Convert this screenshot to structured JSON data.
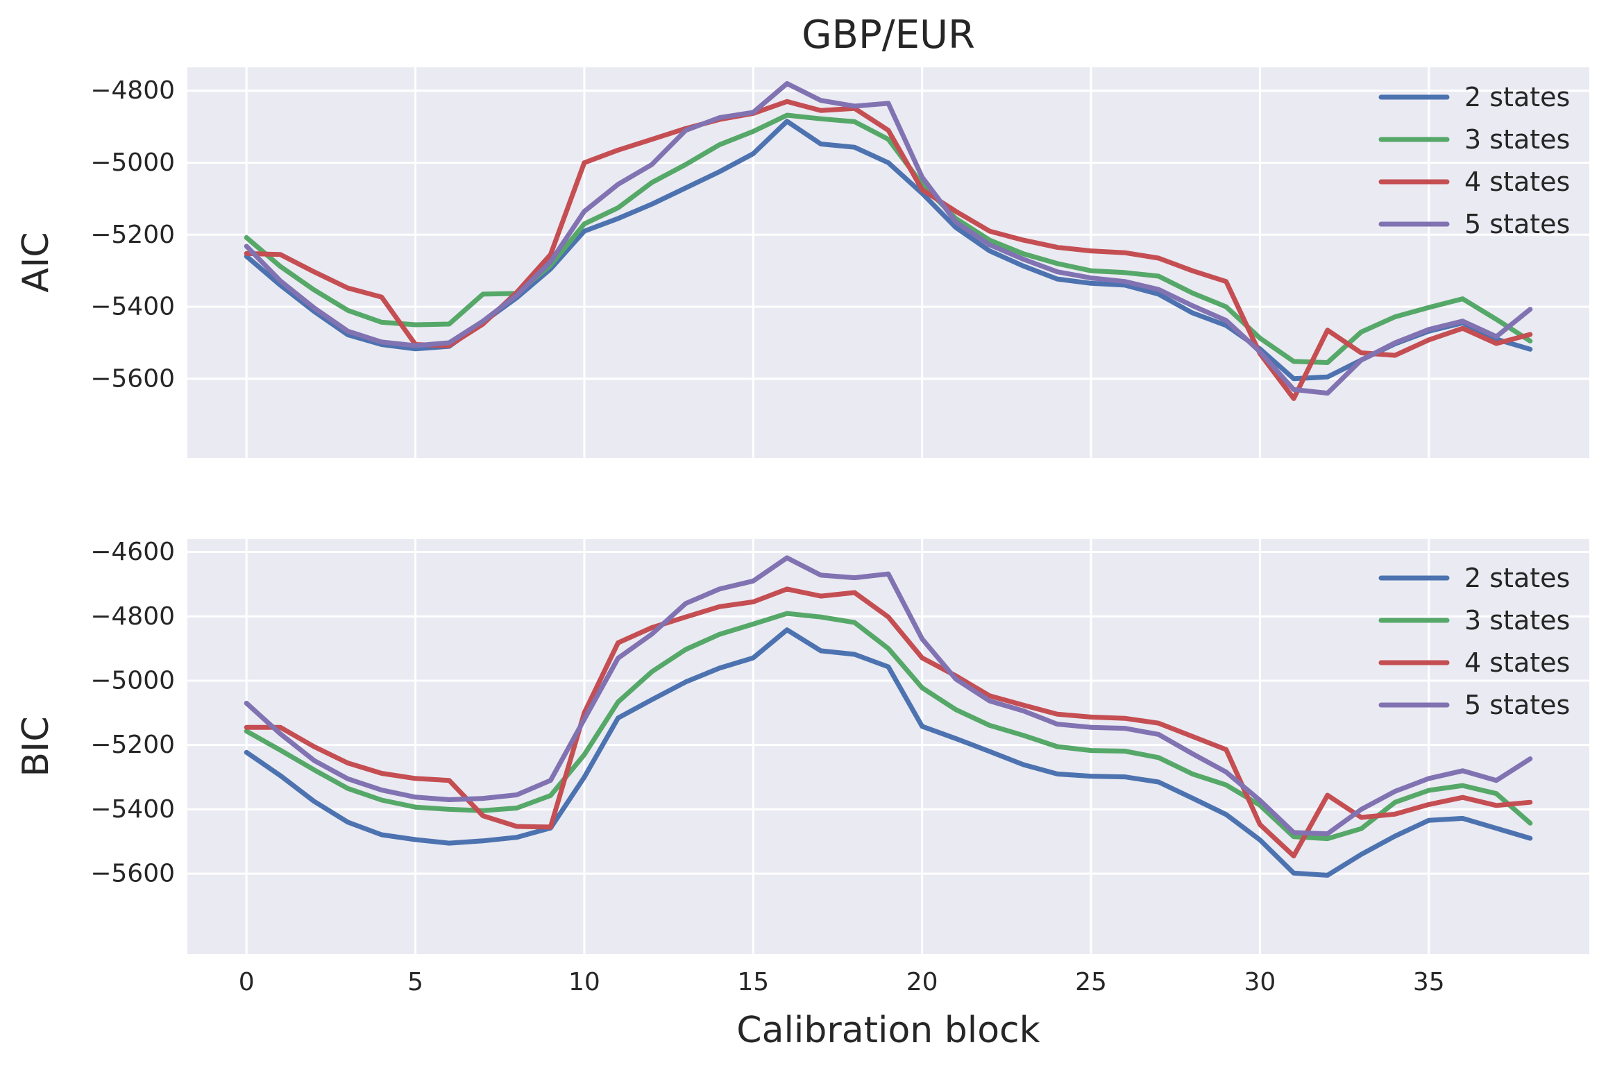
{
  "title": "GBP/EUR",
  "xlabel": "Calibration block",
  "style": {
    "axes_bg": "#EAEAF2",
    "grid_color": "#FFFFFF",
    "text_color": "#262626",
    "line_width": 7
  },
  "legend": {
    "labels": [
      "2 states",
      "3 states",
      "4 states",
      "5 states"
    ],
    "position": "upper right"
  },
  "chart_data": [
    {
      "type": "line",
      "panel": "top",
      "ylabel": "AIC",
      "grid": true,
      "xlim": [
        -1.75,
        39.75
      ],
      "ylim": [
        -5820,
        -4735
      ],
      "xticks": [
        0,
        5,
        10,
        15,
        20,
        25,
        30,
        35
      ],
      "xtick_labels": [
        "0",
        "5",
        "10",
        "15",
        "20",
        "25",
        "30",
        "35"
      ],
      "show_xtick_labels": false,
      "yticks": [
        -4800,
        -5000,
        -5200,
        -5400,
        -5600
      ],
      "ytick_labels": [
        "−4800",
        "−5000",
        "−5200",
        "−5400",
        "−5600"
      ],
      "x": [
        0,
        1,
        2,
        3,
        4,
        5,
        6,
        7,
        8,
        9,
        10,
        11,
        12,
        13,
        14,
        15,
        16,
        17,
        18,
        19,
        20,
        21,
        22,
        23,
        24,
        25,
        26,
        27,
        28,
        29,
        30,
        31,
        32,
        33,
        34,
        35,
        36,
        37,
        38
      ],
      "series": [
        {
          "name": "2 states",
          "color": "#4C72B0",
          "values": [
            -5260,
            -5340,
            -5413,
            -5478,
            -5505,
            -5517,
            -5510,
            -5443,
            -5375,
            -5295,
            -5190,
            -5155,
            -5115,
            -5070,
            -5025,
            -4975,
            -4885,
            -4948,
            -4957,
            -5000,
            -5085,
            -5180,
            -5245,
            -5287,
            -5323,
            -5335,
            -5340,
            -5365,
            -5417,
            -5452,
            -5517,
            -5600,
            -5595,
            -5548,
            -5503,
            -5468,
            -5445,
            -5490,
            -5518
          ]
        },
        {
          "name": "3 states",
          "color": "#55A868",
          "values": [
            -5208,
            -5288,
            -5353,
            -5410,
            -5443,
            -5450,
            -5448,
            -5365,
            -5363,
            -5285,
            -5170,
            -5125,
            -5055,
            -5005,
            -4950,
            -4913,
            -4868,
            -4878,
            -4886,
            -4935,
            -5060,
            -5155,
            -5215,
            -5253,
            -5280,
            -5300,
            -5305,
            -5315,
            -5362,
            -5400,
            -5487,
            -5552,
            -5555,
            -5470,
            -5428,
            -5402,
            -5378,
            -5435,
            -5495
          ]
        },
        {
          "name": "4 states",
          "color": "#C44E52",
          "values": [
            -5252,
            -5255,
            -5303,
            -5348,
            -5373,
            -5505,
            -5508,
            -5448,
            -5360,
            -5255,
            -5000,
            -4965,
            -4935,
            -4905,
            -4880,
            -4863,
            -4830,
            -4855,
            -4849,
            -4910,
            -5075,
            -5135,
            -5190,
            -5215,
            -5235,
            -5245,
            -5250,
            -5265,
            -5300,
            -5330,
            -5530,
            -5655,
            -5465,
            -5528,
            -5535,
            -5492,
            -5460,
            -5502,
            -5477
          ]
        },
        {
          "name": "5 states",
          "color": "#8172B2",
          "values": [
            -5232,
            -5328,
            -5403,
            -5468,
            -5498,
            -5508,
            -5500,
            -5440,
            -5368,
            -5275,
            -5135,
            -5060,
            -5005,
            -4910,
            -4875,
            -4860,
            -4780,
            -4827,
            -4843,
            -4835,
            -5040,
            -5165,
            -5228,
            -5268,
            -5303,
            -5320,
            -5330,
            -5352,
            -5397,
            -5438,
            -5525,
            -5630,
            -5640,
            -5548,
            -5500,
            -5463,
            -5440,
            -5483,
            -5407
          ]
        }
      ]
    },
    {
      "type": "line",
      "panel": "bottom",
      "ylabel": "BIC",
      "grid": true,
      "xlim": [
        -1.75,
        39.75
      ],
      "ylim": [
        -5850,
        -4560
      ],
      "xticks": [
        0,
        5,
        10,
        15,
        20,
        25,
        30,
        35
      ],
      "xtick_labels": [
        "0",
        "5",
        "10",
        "15",
        "20",
        "25",
        "30",
        "35"
      ],
      "show_xtick_labels": true,
      "yticks": [
        -4600,
        -4800,
        -5000,
        -5200,
        -5400,
        -5600
      ],
      "ytick_labels": [
        "−4600",
        "−4800",
        "−5000",
        "−5200",
        "−5400",
        "−5600"
      ],
      "x": [
        0,
        1,
        2,
        3,
        4,
        5,
        6,
        7,
        8,
        9,
        10,
        11,
        12,
        13,
        14,
        15,
        16,
        17,
        18,
        19,
        20,
        21,
        22,
        23,
        24,
        25,
        26,
        27,
        28,
        29,
        30,
        31,
        32,
        33,
        34,
        35,
        36,
        37,
        38
      ],
      "series": [
        {
          "name": "2 states",
          "color": "#4C72B0",
          "values": [
            -5223,
            -5295,
            -5375,
            -5440,
            -5479,
            -5494,
            -5505,
            -5498,
            -5487,
            -5458,
            -5300,
            -5116,
            -5059,
            -5004,
            -4961,
            -4929,
            -4842,
            -4907,
            -4918,
            -4957,
            -5142,
            -5180,
            -5220,
            -5261,
            -5290,
            -5297,
            -5299,
            -5315,
            -5365,
            -5416,
            -5495,
            -5598,
            -5605,
            -5540,
            -5483,
            -5434,
            -5428,
            -5459,
            -5490
          ]
        },
        {
          "name": "3 states",
          "color": "#55A868",
          "values": [
            -5157,
            -5216,
            -5277,
            -5335,
            -5371,
            -5393,
            -5400,
            -5404,
            -5396,
            -5357,
            -5230,
            -5066,
            -4972,
            -4903,
            -4856,
            -4824,
            -4791,
            -4802,
            -4819,
            -4900,
            -5022,
            -5090,
            -5139,
            -5170,
            -5205,
            -5217,
            -5219,
            -5239,
            -5290,
            -5324,
            -5387,
            -5485,
            -5491,
            -5460,
            -5378,
            -5341,
            -5326,
            -5351,
            -5443
          ]
        },
        {
          "name": "4 states",
          "color": "#C44E52",
          "values": [
            -5145,
            -5145,
            -5205,
            -5256,
            -5288,
            -5304,
            -5310,
            -5420,
            -5453,
            -5455,
            -5100,
            -4882,
            -4835,
            -4802,
            -4770,
            -4755,
            -4715,
            -4737,
            -4726,
            -4802,
            -4929,
            -4985,
            -5047,
            -5076,
            -5104,
            -5113,
            -5117,
            -5132,
            -5173,
            -5214,
            -5447,
            -5545,
            -5356,
            -5425,
            -5415,
            -5385,
            -5363,
            -5388,
            -5378
          ]
        },
        {
          "name": "5 states",
          "color": "#8172B2",
          "values": [
            -5070,
            -5165,
            -5248,
            -5305,
            -5340,
            -5362,
            -5370,
            -5366,
            -5355,
            -5310,
            -5120,
            -4930,
            -4855,
            -4760,
            -4715,
            -4690,
            -4618,
            -4672,
            -4680,
            -4668,
            -4870,
            -4995,
            -5063,
            -5094,
            -5135,
            -5145,
            -5148,
            -5167,
            -5227,
            -5284,
            -5372,
            -5472,
            -5476,
            -5400,
            -5344,
            -5304,
            -5280,
            -5310,
            -5243
          ]
        }
      ]
    }
  ]
}
